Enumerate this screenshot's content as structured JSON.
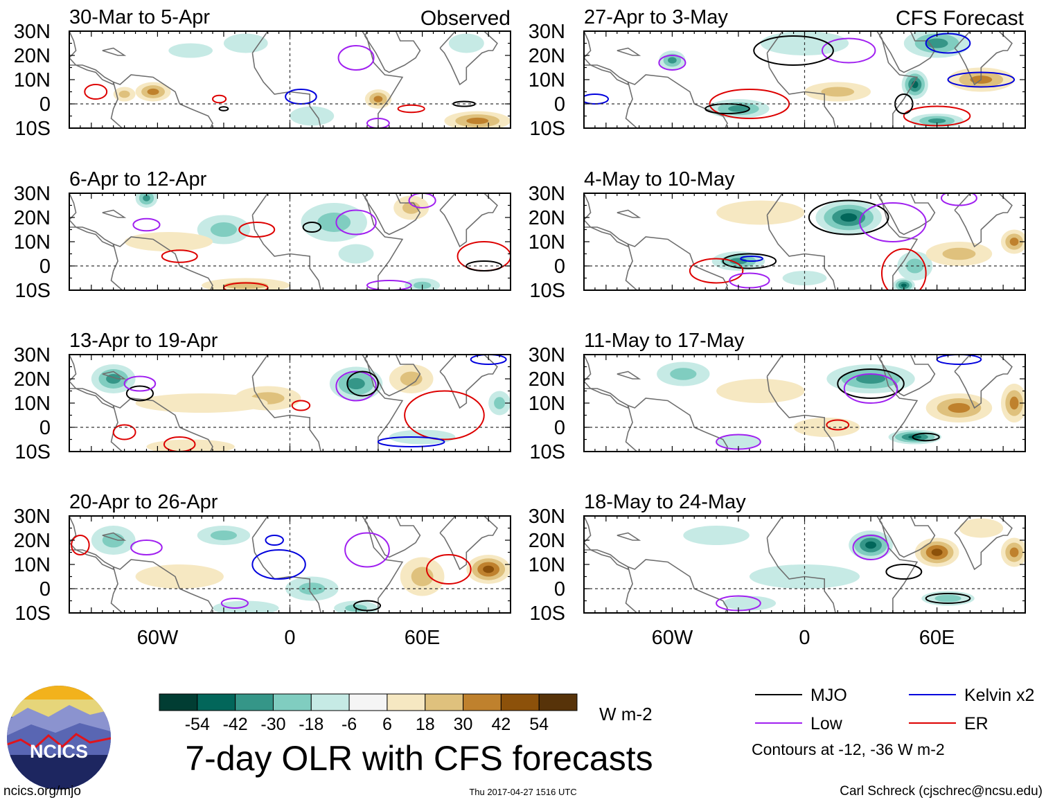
{
  "figure": {
    "title": "7-day OLR with CFS forecasts",
    "left_column_label": "Observed",
    "right_column_label": "CFS Forecast",
    "footer_left": "ncics.org/mjo",
    "footer_center": "Thu 2017-04-27 1516 UTC",
    "footer_right": "Carl Schreck (cjschrec@ncsu.edu)",
    "logo_text": "NCICS"
  },
  "chart_data": {
    "type": "heatmap",
    "description_variable": "OLR anomaly",
    "units": "W m-2",
    "x_range": [
      -100,
      100
    ],
    "y_range": [
      -10,
      30
    ],
    "x_ticks": [
      {
        "value": -60,
        "label": "60W"
      },
      {
        "value": 0,
        "label": "0"
      },
      {
        "value": 60,
        "label": "60E"
      }
    ],
    "y_ticks": [
      {
        "value": 30,
        "label": "30N"
      },
      {
        "value": 20,
        "label": "20N"
      },
      {
        "value": 10,
        "label": "10N"
      },
      {
        "value": 0,
        "label": "0"
      },
      {
        "value": -10,
        "label": "10S"
      }
    ],
    "colorbar": {
      "colors": [
        "#013d33",
        "#02665a",
        "#359688",
        "#80cdc0",
        "#c6eae5",
        "#f5f5f5",
        "#f6e8c2",
        "#dfc17d",
        "#bf812d",
        "#8c510a",
        "#573309"
      ],
      "labels": [
        "-54",
        "-42",
        "-30",
        "-18",
        "-6",
        "6",
        "18",
        "30",
        "42",
        "54"
      ]
    },
    "legend": [
      {
        "name": "MJO",
        "color": "#000000"
      },
      {
        "name": "Kelvin x2",
        "color": "#0000dd"
      },
      {
        "name": "Low",
        "color": "#a020f0"
      },
      {
        "name": "ER",
        "color": "#dd0000"
      }
    ],
    "contour_note": "Contours at -12, -36 W m-2",
    "panels": [
      {
        "period": "30-Mar to 5-Apr",
        "column": "Observed",
        "col": 0,
        "row": 0,
        "blobs": [
          [
            -62,
            5,
            8,
            4,
            30
          ],
          [
            -75,
            4,
            5,
            3,
            20
          ],
          [
            40,
            2,
            6,
            4,
            30
          ],
          [
            85,
            -7,
            15,
            4,
            40
          ],
          [
            -20,
            25,
            10,
            4,
            -10
          ],
          [
            80,
            25,
            8,
            4,
            -12
          ],
          [
            -45,
            22,
            10,
            3,
            -8
          ],
          [
            10,
            -5,
            10,
            4,
            -10
          ]
        ],
        "contours": [
          [
            -88,
            5,
            5,
            3,
            "#dd0000"
          ],
          [
            -32,
            2,
            3,
            1.5,
            "#dd0000"
          ],
          [
            5,
            3,
            7,
            3,
            "#0000dd"
          ],
          [
            30,
            19,
            8,
            5,
            "#a020f0"
          ],
          [
            55,
            -2,
            6,
            1.5,
            "#dd0000"
          ],
          [
            79,
            0,
            5,
            1,
            "#000000"
          ],
          [
            -30,
            -2,
            2,
            0.8,
            "#000000"
          ],
          [
            40,
            -8,
            5,
            2,
            "#a020f0"
          ]
        ]
      },
      {
        "period": "6-Apr to 12-Apr",
        "column": "Observed",
        "col": 0,
        "row": 1,
        "blobs": [
          [
            -30,
            15,
            12,
            6,
            -28
          ],
          [
            -65,
            28,
            5,
            4,
            -30
          ],
          [
            20,
            18,
            15,
            8,
            -20
          ],
          [
            55,
            24,
            8,
            5,
            25
          ],
          [
            -20,
            -8,
            20,
            3,
            22
          ],
          [
            -55,
            10,
            20,
            4,
            12
          ],
          [
            60,
            -8,
            8,
            3,
            -24
          ],
          [
            30,
            5,
            8,
            4,
            -12
          ]
        ],
        "contours": [
          [
            -65,
            17,
            6,
            2.5,
            "#a020f0"
          ],
          [
            30,
            18,
            9,
            5,
            "#a020f0"
          ],
          [
            -15,
            15,
            8,
            3,
            "#dd0000"
          ],
          [
            -50,
            4,
            8,
            2.5,
            "#dd0000"
          ],
          [
            -20,
            -9,
            10,
            2,
            "#dd0000"
          ],
          [
            88,
            4,
            12,
            6,
            "#dd0000"
          ],
          [
            10,
            16,
            4,
            2,
            "#000000"
          ],
          [
            88,
            0,
            8,
            2,
            "#000000"
          ],
          [
            60,
            27,
            6,
            3,
            "#a020f0"
          ],
          [
            45,
            -8,
            10,
            2,
            "#a020f0"
          ]
        ]
      },
      {
        "period": "13-Apr to 19-Apr",
        "column": "Observed",
        "col": 0,
        "row": 2,
        "blobs": [
          [
            -80,
            20,
            10,
            6,
            -34
          ],
          [
            30,
            18,
            12,
            7,
            -40
          ],
          [
            -10,
            12,
            15,
            5,
            26
          ],
          [
            55,
            20,
            10,
            6,
            22
          ],
          [
            -40,
            10,
            30,
            4,
            12
          ],
          [
            95,
            10,
            5,
            5,
            -20
          ],
          [
            60,
            -4,
            15,
            3,
            -14
          ],
          [
            -45,
            -8,
            20,
            3,
            10
          ]
        ],
        "contours": [
          [
            -68,
            14,
            6,
            3,
            "#000000"
          ],
          [
            -68,
            18,
            7,
            3,
            "#a020f0"
          ],
          [
            30,
            17,
            9,
            6,
            "#a020f0"
          ],
          [
            33,
            18,
            7,
            5,
            "#000000"
          ],
          [
            70,
            5,
            18,
            10,
            "#dd0000"
          ],
          [
            -50,
            -7,
            7,
            3,
            "#dd0000"
          ],
          [
            -75,
            -2,
            5,
            3,
            "#dd0000"
          ],
          [
            55,
            -6,
            15,
            2,
            "#0000dd"
          ],
          [
            90,
            28,
            8,
            2,
            "#0000dd"
          ],
          [
            5,
            9,
            4,
            2,
            "#dd0000"
          ]
        ]
      },
      {
        "period": "20-Apr to 26-Apr",
        "column": "Observed",
        "col": 0,
        "row": 3,
        "blobs": [
          [
            -80,
            20,
            10,
            6,
            -24
          ],
          [
            90,
            8,
            10,
            6,
            48
          ],
          [
            60,
            5,
            10,
            8,
            18
          ],
          [
            -30,
            22,
            12,
            4,
            -18
          ],
          [
            10,
            0,
            12,
            5,
            -20
          ],
          [
            -50,
            5,
            20,
            5,
            14
          ],
          [
            30,
            -8,
            10,
            3,
            -22
          ],
          [
            -20,
            -8,
            15,
            3,
            -14
          ]
        ],
        "contours": [
          [
            -65,
            17,
            7,
            3,
            "#a020f0"
          ],
          [
            -5,
            10,
            12,
            6,
            "#0000dd"
          ],
          [
            35,
            16,
            10,
            7,
            "#a020f0"
          ],
          [
            72,
            8,
            10,
            6,
            "#dd0000"
          ],
          [
            -25,
            -6,
            6,
            2,
            "#a020f0"
          ],
          [
            35,
            -7,
            6,
            2,
            "#000000"
          ],
          [
            -95,
            18,
            4,
            4,
            "#dd0000"
          ],
          [
            -7,
            20,
            4,
            2,
            "#0000dd"
          ]
        ]
      },
      {
        "period": "27-Apr to 3-May",
        "column": "CFS Forecast",
        "col": 1,
        "row": 0,
        "blobs": [
          [
            -60,
            18,
            6,
            4,
            -40
          ],
          [
            -30,
            -2,
            14,
            4,
            -40
          ],
          [
            50,
            8,
            6,
            6,
            -52
          ],
          [
            80,
            10,
            15,
            5,
            40
          ],
          [
            60,
            25,
            15,
            6,
            -30
          ],
          [
            15,
            5,
            15,
            4,
            25
          ],
          [
            60,
            -7,
            12,
            3,
            -30
          ],
          [
            0,
            25,
            20,
            5,
            -10
          ]
        ],
        "contours": [
          [
            -25,
            0,
            18,
            6,
            "#dd0000"
          ],
          [
            60,
            -5,
            15,
            4,
            "#dd0000"
          ],
          [
            -60,
            17,
            6,
            3,
            "#a020f0"
          ],
          [
            20,
            22,
            12,
            5,
            "#a020f0"
          ],
          [
            -5,
            22,
            18,
            6,
            "#000000"
          ],
          [
            -35,
            -2,
            10,
            2,
            "#000000"
          ],
          [
            45,
            0,
            4,
            4,
            "#000000"
          ],
          [
            80,
            10,
            15,
            3,
            "#0000dd"
          ],
          [
            65,
            25,
            10,
            4,
            "#0000dd"
          ],
          [
            -95,
            2,
            6,
            2,
            "#0000dd"
          ]
        ]
      },
      {
        "period": "4-May to 10-May",
        "column": "CFS Forecast",
        "col": 1,
        "row": 1,
        "blobs": [
          [
            20,
            20,
            15,
            7,
            -48
          ],
          [
            -30,
            2,
            12,
            4,
            -34
          ],
          [
            50,
            0,
            8,
            6,
            -22
          ],
          [
            70,
            5,
            15,
            5,
            24
          ],
          [
            95,
            10,
            6,
            5,
            40
          ],
          [
            -20,
            22,
            20,
            5,
            10
          ],
          [
            45,
            -8,
            5,
            3,
            -42
          ],
          [
            0,
            -5,
            10,
            3,
            -10
          ]
        ],
        "contours": [
          [
            20,
            20,
            18,
            7,
            "#000000"
          ],
          [
            40,
            18,
            15,
            8,
            "#a020f0"
          ],
          [
            -25,
            2,
            12,
            3,
            "#000000"
          ],
          [
            -24,
            3,
            5,
            1,
            "#0000dd"
          ],
          [
            -40,
            -2,
            12,
            5,
            "#dd0000"
          ],
          [
            -25,
            -6,
            9,
            3,
            "#a020f0"
          ],
          [
            45,
            -3,
            10,
            10,
            "#dd0000"
          ],
          [
            70,
            28,
            8,
            3,
            "#a020f0"
          ]
        ]
      },
      {
        "period": "11-May to 17-May",
        "column": "CFS Forecast",
        "col": 1,
        "row": 2,
        "blobs": [
          [
            -55,
            22,
            12,
            5,
            -22
          ],
          [
            30,
            20,
            20,
            6,
            -36
          ],
          [
            70,
            8,
            15,
            6,
            40
          ],
          [
            95,
            10,
            6,
            8,
            40
          ],
          [
            50,
            -4,
            12,
            3,
            -46
          ],
          [
            -20,
            15,
            20,
            5,
            8
          ],
          [
            10,
            0,
            15,
            4,
            12
          ],
          [
            -30,
            -6,
            10,
            3,
            -16
          ]
        ],
        "contours": [
          [
            30,
            18,
            15,
            6,
            "#000000"
          ],
          [
            30,
            16,
            12,
            6,
            "#a020f0"
          ],
          [
            -30,
            -6,
            10,
            3,
            "#a020f0"
          ],
          [
            15,
            1,
            5,
            2,
            "#dd0000"
          ],
          [
            55,
            -4,
            6,
            1.5,
            "#000000"
          ],
          [
            70,
            28,
            10,
            2,
            "#0000dd"
          ]
        ]
      },
      {
        "period": "18-May to 24-May",
        "column": "CFS Forecast",
        "col": 1,
        "row": 3,
        "blobs": [
          [
            30,
            18,
            10,
            6,
            -46
          ],
          [
            60,
            15,
            10,
            6,
            42
          ],
          [
            95,
            15,
            6,
            6,
            40
          ],
          [
            65,
            -4,
            12,
            3,
            -28
          ],
          [
            -40,
            22,
            15,
            4,
            -14
          ],
          [
            -25,
            -6,
            12,
            3,
            -16
          ],
          [
            0,
            5,
            25,
            5,
            -8
          ],
          [
            80,
            25,
            10,
            4,
            14
          ]
        ],
        "contours": [
          [
            30,
            17,
            8,
            5,
            "#a020f0"
          ],
          [
            45,
            7,
            8,
            3,
            "#000000"
          ],
          [
            65,
            -4,
            10,
            2,
            "#000000"
          ],
          [
            -30,
            -6,
            10,
            3,
            "#a020f0"
          ]
        ]
      }
    ]
  }
}
